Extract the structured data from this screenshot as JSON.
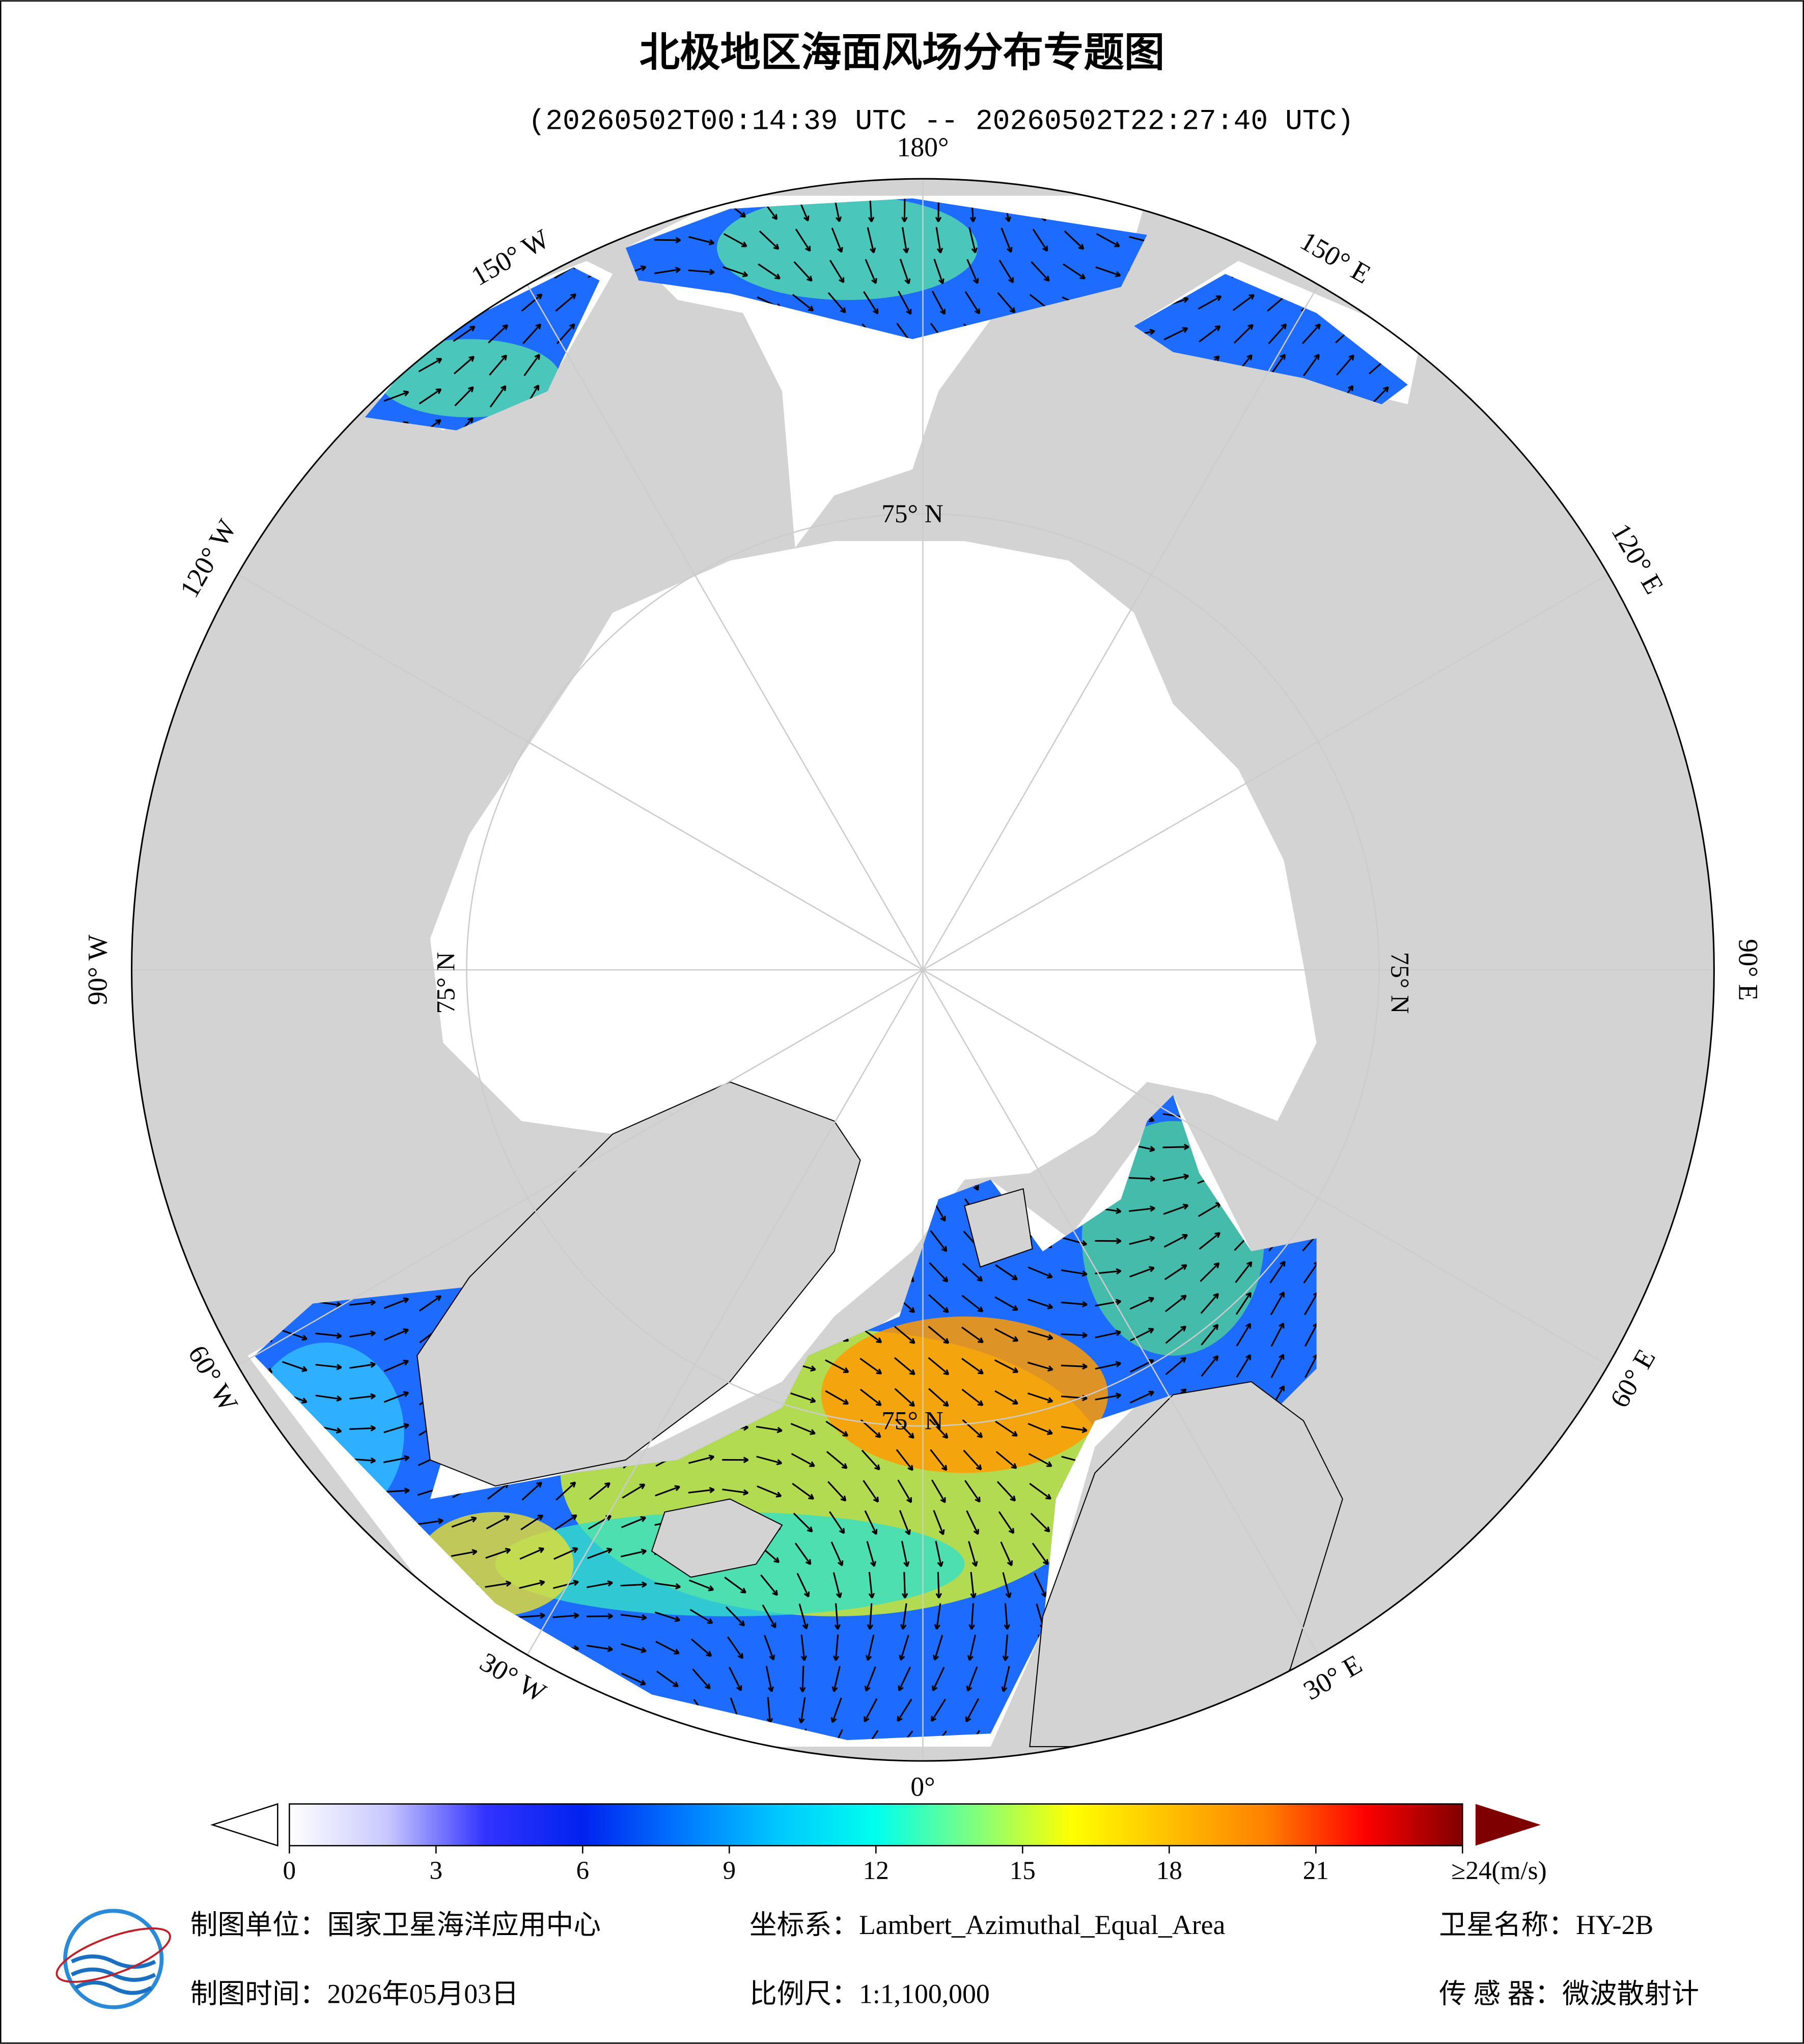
{
  "map": {
    "title": "北极地区海面风场分布专题图",
    "subtitle": "(20260502T00:14:39 UTC -- 20260502T22:27:40 UTC)",
    "meridian_labels": [
      "180°",
      "150° E",
      "120° E",
      "90° E",
      "60° E",
      "30° E",
      "0°",
      "30° W",
      "60° W",
      "90° W",
      "120° W",
      "150° W"
    ],
    "parallel_label": "75° N",
    "colorbar": {
      "lim": [
        0,
        24
      ],
      "ticks": [
        0,
        3,
        6,
        9,
        12,
        15,
        18,
        21,
        {
          "value": 24,
          "label": "≥24(m/s)"
        }
      ],
      "colormap": [
        "#ffffff",
        "#c8c8ff",
        "#3333ff",
        "#0022ee",
        "#0077ff",
        "#00c8ff",
        "#00ffee",
        "#7fff7f",
        "#ffff00",
        "#ffc000",
        "#ff8000",
        "#ff0000",
        "#7f0000"
      ]
    },
    "footer": {
      "unit": "制图单位：国家卫星海洋应用中心",
      "projection": "坐标系：Lambert_Azimuthal_Equal_Area",
      "satellite": "卫星名称：HY-2B",
      "date": "制图时间：2026年05月03日",
      "scale": "比例尺：1:1,100,000",
      "sensor": "传 感 器：微波散射计"
    }
  }
}
